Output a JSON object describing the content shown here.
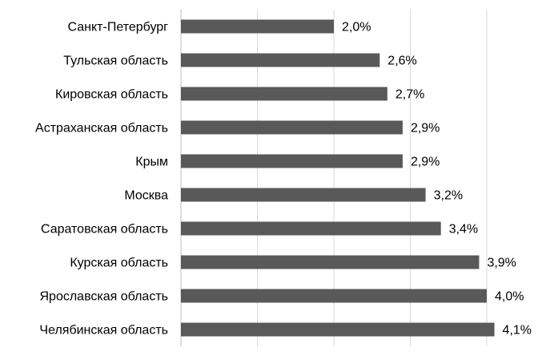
{
  "chart_data": {
    "type": "bar",
    "orientation": "horizontal",
    "categories": [
      "Санкт-Петербург",
      "Тульская область",
      "Кировская область",
      "Астраханская область",
      "Крым",
      "Москва",
      "Саратовская область",
      "Курская область",
      "Ярославская область",
      "Челябинская область"
    ],
    "values": [
      2.0,
      2.6,
      2.7,
      2.9,
      2.9,
      3.2,
      3.4,
      3.9,
      4.0,
      4.1
    ],
    "value_labels": [
      "2,0%",
      "2,6%",
      "2,7%",
      "2,9%",
      "2,9%",
      "3,2%",
      "3,4%",
      "3,9%",
      "4,0%",
      "4,1%"
    ],
    "xlim": [
      0,
      4.5
    ],
    "x_gridline_step": 1,
    "grid": true,
    "legend": "none",
    "title": "",
    "xlabel": "",
    "ylabel": "",
    "colors": {
      "bar": "#595959",
      "grid": "#d9d9d9"
    }
  }
}
